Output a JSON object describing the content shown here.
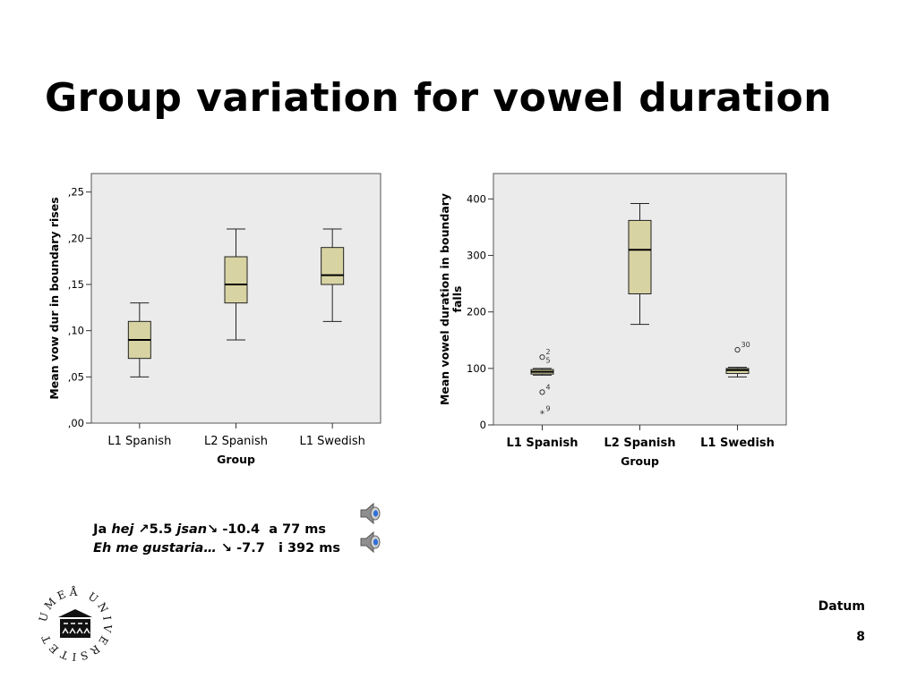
{
  "title": "Group variation for vowel duration",
  "chart_data": [
    {
      "type": "box",
      "categories": [
        "L1 Spanish",
        "L2 Spanish",
        "L1 Swedish"
      ],
      "xlabel": "Group",
      "ylabel": "Mean vow dur in boundary rises",
      "ylim": [
        0,
        0.27
      ],
      "yticks": [
        0,
        0.05,
        0.1,
        0.15,
        0.2,
        0.25
      ],
      "ytick_labels": [
        ",00",
        ",05",
        ",10",
        ",15",
        ",20",
        ",25"
      ],
      "boxes": [
        {
          "whisker_low": 0.05,
          "q1": 0.07,
          "median": 0.09,
          "q3": 0.11,
          "whisker_high": 0.13
        },
        {
          "whisker_low": 0.09,
          "q1": 0.13,
          "median": 0.15,
          "q3": 0.18,
          "whisker_high": 0.21
        },
        {
          "whisker_low": 0.11,
          "q1": 0.15,
          "median": 0.16,
          "q3": 0.19,
          "whisker_high": 0.21
        }
      ],
      "outliers": [],
      "box_color": "#d8d3a2",
      "plot_background": "#ebebeb"
    },
    {
      "type": "box",
      "categories": [
        "L1 Spanish",
        "L2 Spanish",
        "L1 Swedish"
      ],
      "xlabel": "Group",
      "ylabel_lines": [
        "Mean vowel duration in boundary",
        "falls"
      ],
      "ylim": [
        0,
        445
      ],
      "yticks": [
        0,
        100,
        200,
        300,
        400
      ],
      "ytick_labels": [
        "0",
        "100",
        "200",
        "300",
        "400"
      ],
      "boxes": [
        {
          "whisker_low": 88,
          "q1": 90,
          "median": 94,
          "q3": 98,
          "whisker_high": 100
        },
        {
          "whisker_low": 178,
          "q1": 232,
          "median": 310,
          "q3": 362,
          "whisker_high": 392
        },
        {
          "whisker_low": 85,
          "q1": 91,
          "median": 97,
          "q3": 100,
          "whisker_high": 102
        }
      ],
      "outliers": [
        {
          "category": 0,
          "value": 120,
          "label": "2",
          "marker": "circle"
        },
        {
          "category": 0,
          "value": 105,
          "label": "5",
          "marker": "none"
        },
        {
          "category": 0,
          "value": 58,
          "label": "4",
          "marker": "circle"
        },
        {
          "category": 0,
          "value": 20,
          "label": "9",
          "marker": "star"
        },
        {
          "category": 2,
          "value": 133,
          "label": "30",
          "marker": "circle"
        }
      ],
      "box_color": "#d8d3a2",
      "plot_background": "#ebebeb"
    }
  ],
  "audio_examples": [
    {
      "prefix": "Ja ",
      "italic": "hej",
      "rest": " ↗5.5 ",
      "italic2": "jsan",
      "rest2": "↘ -10.4  a 77 ms"
    },
    {
      "prefix": "",
      "italic": "Eh me gustaria…",
      "rest": " ↘ -7.7   i 392 ms",
      "italic2": "",
      "rest2": ""
    }
  ],
  "logo": {
    "text": "UMEÅ UNIVERSITET"
  },
  "footer": {
    "date_label": "Datum",
    "page_number": "8"
  },
  "icons": {
    "speaker": "speaker-icon"
  }
}
